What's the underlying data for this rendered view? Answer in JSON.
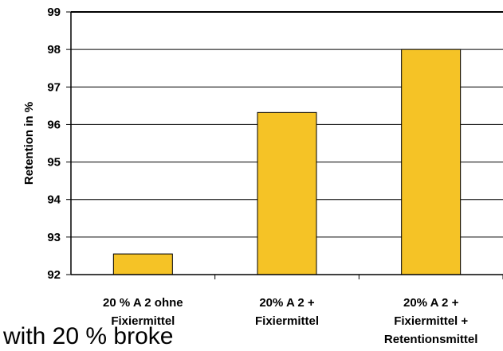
{
  "chart_data": {
    "type": "bar",
    "title": "",
    "xlabel": "",
    "ylabel": "Retention in %",
    "ylim": [
      92,
      99
    ],
    "yticks": [
      92,
      93,
      94,
      95,
      96,
      97,
      98,
      99
    ],
    "grid": true,
    "legend": "none",
    "bar_color": "#F5C326",
    "categories": [
      [
        "20 % A 2 ohne",
        "Fixiermittel"
      ],
      [
        "20% A 2 +",
        "Fixiermittel"
      ],
      [
        "20% A 2 +",
        "Fixiermittel +",
        "Retentionsmittel"
      ]
    ],
    "values": [
      92.55,
      96.32,
      98.0
    ]
  },
  "caption": "with 20 % broke"
}
